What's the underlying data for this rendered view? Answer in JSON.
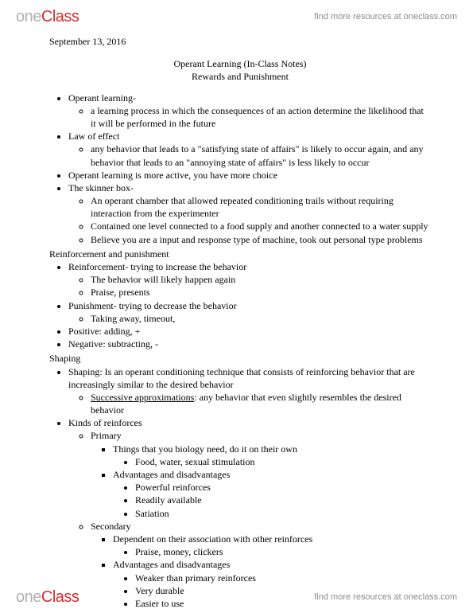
{
  "brand": {
    "part1": "one",
    "part2": "Class"
  },
  "header_link": "find more resources at oneclass.com",
  "footer_link": "find more resources at oneclass.com",
  "date": "September 13, 2016",
  "title": "Operant Learning (In-Class Notes)",
  "subtitle": "Rewards and Punishment",
  "b1": "Operant learning-",
  "b1a": "a learning process in which the consequences of an action determine the likelihood that it will be performed in the future",
  "b2": "Law of effect",
  "b2a": "any behavior that leads to a \"satisfying state of affairs\" is likely to occur again, and any behavior that leads to an \"annoying state of affairs\" is less likely to occur",
  "b3": "Operant learning is more active, you have more choice",
  "b4": "The skinner box-",
  "b4a": "An operant chamber that allowed repeated conditioning trails without requiring interaction from the experimenter",
  "b4b": "Contained one level connected to a food supply and another connected to a water supply",
  "b4c": "Believe you are a input and response type of machine, took out personal type problems",
  "s1": "Reinforcement and punishment",
  "r1": "Reinforcement- trying to increase the behavior",
  "r1a": "The behavior will likely happen again",
  "r1b": "Praise, presents",
  "r2": "Punishment- trying to decrease the behavior",
  "r2a": "Taking away, timeout,",
  "r3": "Positive: adding, +",
  "r4": "Negative: subtracting, -",
  "s2": "Shaping",
  "sh1": "Shaping: Is an operant conditioning technique that consists of reinforcing behavior that are increasingly similar to the desired behavior",
  "sh1a_u": "Successive approximations",
  "sh1a_r": ": any behavior that even slightly resembles the desired behavior",
  "sh2": "Kinds of reinforces",
  "pr": "Primary",
  "pr1": "Things that you biology need, do it on their own",
  "pr1a": "Food, water, sexual stimulation",
  "pr2": "Advantages and disadvantages",
  "pr2a": "Powerful reinforces",
  "pr2b": "Readily available",
  "pr2c": "Satiation",
  "se": "Secondary",
  "se1": "Dependent on their association with other reinforces",
  "se1a": "Praise, money, clickers",
  "se2": "Advantages and disadvantages",
  "se2a": "Weaker than primary reinforces",
  "se2b": "Very durable",
  "se2c": "Easier to use"
}
